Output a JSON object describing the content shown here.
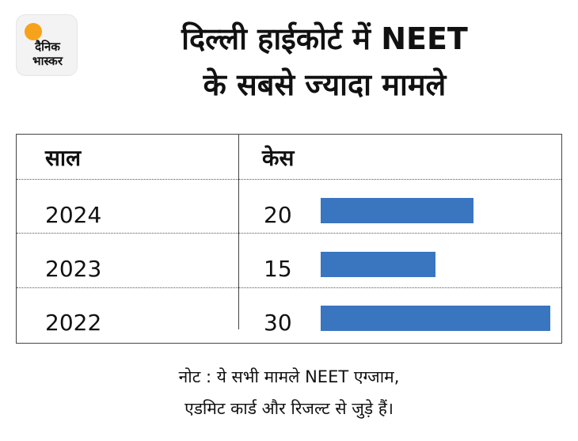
{
  "brand": {
    "line1": "दैनिक",
    "line2": "भास्कर",
    "accent": "#f7a21b"
  },
  "header": {
    "title_line1": "दिल्ली हाईकोर्ट में NEET",
    "title_line2": "के सबसे ज्यादा मामले"
  },
  "table": {
    "col_year": "साल",
    "col_cases": "केस"
  },
  "chart_data": {
    "type": "bar",
    "orientation": "horizontal",
    "categories": [
      "2024",
      "2023",
      "2022"
    ],
    "values": [
      20,
      15,
      30
    ],
    "value_labels": [
      "20",
      "15",
      "30"
    ],
    "xlim": [
      0,
      30
    ],
    "bar_color": "#3a75c0",
    "xlabel": "केस",
    "ylabel": "साल",
    "grid": false
  },
  "note": {
    "line1": "नोट : ये सभी मामले NEET एग्जाम,",
    "line2": "एडमिट कार्ड और रिजल्ट से जुड़े हैं।"
  }
}
